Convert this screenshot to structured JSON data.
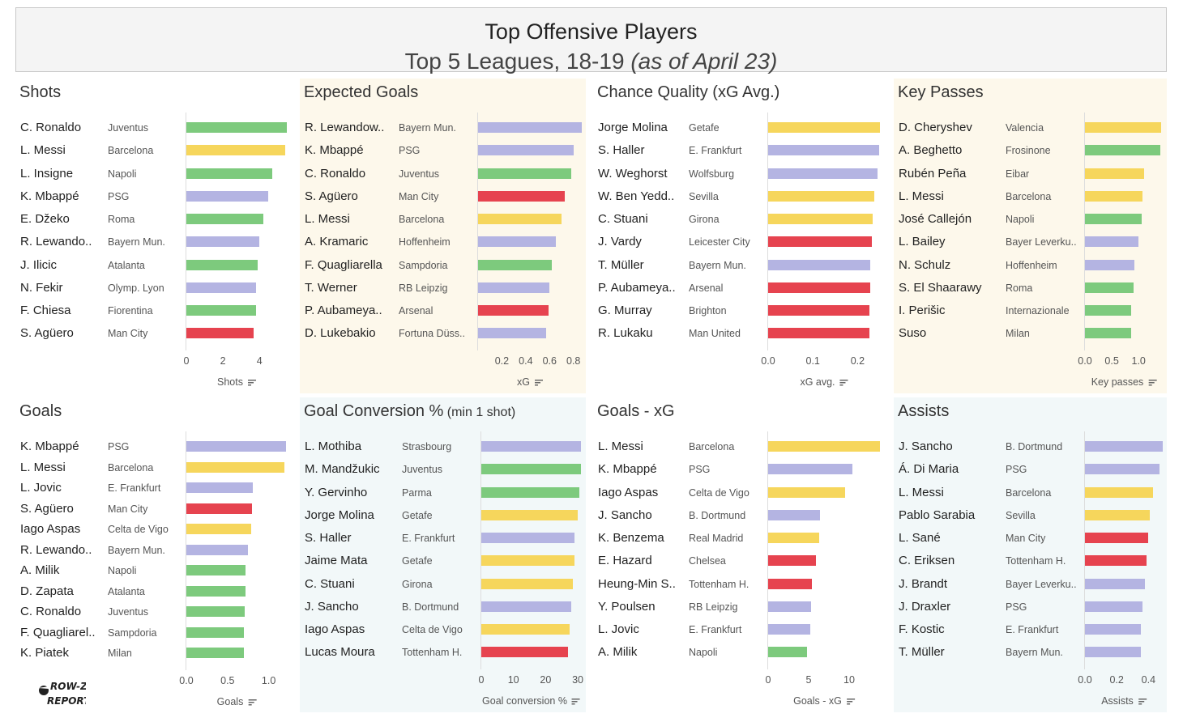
{
  "header": {
    "title": "Top Offensive Players",
    "subtitle_main": "Top 5 Leagues, 18-19 ",
    "subtitle_italic": "(as of April 23)"
  },
  "logo": {
    "text_line1": "ROW-Z",
    "text_line2": "REPORT"
  },
  "colors": {
    "green": "#7dca7d",
    "yellow": "#f6d65c",
    "purple": "#b4b4e2",
    "red": "#e6434f"
  },
  "chart_data": [
    {
      "type": "bar",
      "title": "Shots",
      "title_suffix": "",
      "xlabel": "Shots",
      "xlim": [
        0,
        5.5
      ],
      "ticks": [
        {
          "v": 0,
          "label": "0"
        },
        {
          "v": 2,
          "label": "2"
        },
        {
          "v": 4,
          "label": "4"
        }
      ],
      "players": [
        {
          "name": "C. Ronaldo",
          "team": "Juventus",
          "value": 5.5,
          "color": "green"
        },
        {
          "name": "L. Messi",
          "team": "Barcelona",
          "value": 5.4,
          "color": "yellow"
        },
        {
          "name": "L. Insigne",
          "team": "Napoli",
          "value": 4.7,
          "color": "green"
        },
        {
          "name": "K. Mbappé",
          "team": "PSG",
          "value": 4.5,
          "color": "purple"
        },
        {
          "name": "E. Džeko",
          "team": "Roma",
          "value": 4.2,
          "color": "green"
        },
        {
          "name": "R. Lewando..",
          "team": "Bayern Mun.",
          "value": 4.0,
          "color": "purple"
        },
        {
          "name": "J. Ilicic",
          "team": "Atalanta",
          "value": 3.9,
          "color": "green"
        },
        {
          "name": "N. Fekir",
          "team": "Olymp. Lyon",
          "value": 3.8,
          "color": "purple"
        },
        {
          "name": "F. Chiesa",
          "team": "Fiorentina",
          "value": 3.8,
          "color": "green"
        },
        {
          "name": "S. Agüero",
          "team": "Man City",
          "value": 3.7,
          "color": "red"
        }
      ]
    },
    {
      "type": "bar",
      "title": "Expected Goals",
      "title_suffix": "",
      "xlabel": "xG",
      "xlim": [
        0,
        0.87
      ],
      "ticks": [
        {
          "v": 0.2,
          "label": "0.2"
        },
        {
          "v": 0.4,
          "label": "0.4"
        },
        {
          "v": 0.6,
          "label": "0.6"
        },
        {
          "v": 0.8,
          "label": "0.8"
        }
      ],
      "players": [
        {
          "name": "R. Lewandow..",
          "team": "Bayern Mun.",
          "value": 0.87,
          "color": "purple"
        },
        {
          "name": "K. Mbappé",
          "team": "PSG",
          "value": 0.8,
          "color": "purple"
        },
        {
          "name": "C. Ronaldo",
          "team": "Juventus",
          "value": 0.78,
          "color": "green"
        },
        {
          "name": "S. Agüero",
          "team": "Man City",
          "value": 0.73,
          "color": "red"
        },
        {
          "name": "L. Messi",
          "team": "Barcelona",
          "value": 0.7,
          "color": "yellow"
        },
        {
          "name": "A. Kramaric",
          "team": "Hoffenheim",
          "value": 0.65,
          "color": "purple"
        },
        {
          "name": "F. Quagliarella",
          "team": "Sampdoria",
          "value": 0.62,
          "color": "green"
        },
        {
          "name": "T. Werner",
          "team": "RB Leipzig",
          "value": 0.6,
          "color": "purple"
        },
        {
          "name": "P. Aubameya..",
          "team": "Arsenal",
          "value": 0.59,
          "color": "red"
        },
        {
          "name": "D. Lukebakio",
          "team": "Fortuna Düss..",
          "value": 0.57,
          "color": "purple"
        }
      ]
    },
    {
      "type": "bar",
      "title": "Chance Quality (xG Avg.)",
      "title_suffix": "",
      "xlabel": "xG avg.",
      "xlim": [
        0,
        0.25
      ],
      "ticks": [
        {
          "v": 0,
          "label": "0.0"
        },
        {
          "v": 0.1,
          "label": "0.1"
        },
        {
          "v": 0.2,
          "label": "0.2"
        }
      ],
      "players": [
        {
          "name": "Jorge Molina",
          "team": "Getafe",
          "value": 0.25,
          "color": "yellow"
        },
        {
          "name": "S. Haller",
          "team": "E. Frankfurt",
          "value": 0.248,
          "color": "purple"
        },
        {
          "name": "W. Weghorst",
          "team": "Wolfsburg",
          "value": 0.245,
          "color": "purple"
        },
        {
          "name": "W. Ben Yedd..",
          "team": "Sevilla",
          "value": 0.237,
          "color": "yellow"
        },
        {
          "name": "C. Stuani",
          "team": "Girona",
          "value": 0.234,
          "color": "yellow"
        },
        {
          "name": "J. Vardy",
          "team": "Leicester City",
          "value": 0.231,
          "color": "red"
        },
        {
          "name": "T. Müller",
          "team": "Bayern Mun.",
          "value": 0.229,
          "color": "purple"
        },
        {
          "name": "P. Aubameya..",
          "team": "Arsenal",
          "value": 0.228,
          "color": "red"
        },
        {
          "name": "G. Murray",
          "team": "Brighton",
          "value": 0.227,
          "color": "red"
        },
        {
          "name": "R. Lukaku",
          "team": "Man United",
          "value": 0.226,
          "color": "red"
        }
      ]
    },
    {
      "type": "bar",
      "title": "Key Passes",
      "title_suffix": "",
      "xlabel": "Key passes",
      "xlim": [
        0,
        1.45
      ],
      "ticks": [
        {
          "v": 0,
          "label": "0.0"
        },
        {
          "v": 0.5,
          "label": "0.5"
        },
        {
          "v": 1.0,
          "label": "1.0"
        }
      ],
      "players": [
        {
          "name": "D. Cheryshev",
          "team": "Valencia",
          "value": 1.42,
          "color": "yellow"
        },
        {
          "name": "A. Beghetto",
          "team": "Frosinone",
          "value": 1.4,
          "color": "green"
        },
        {
          "name": "Rubén Peña",
          "team": "Eibar",
          "value": 1.1,
          "color": "yellow"
        },
        {
          "name": "L. Messi",
          "team": "Barcelona",
          "value": 1.07,
          "color": "yellow"
        },
        {
          "name": "José Callejón",
          "team": "Napoli",
          "value": 1.05,
          "color": "green"
        },
        {
          "name": "L. Bailey",
          "team": "Bayer Leverku..",
          "value": 1.0,
          "color": "purple"
        },
        {
          "name": "N. Schulz",
          "team": "Hoffenheim",
          "value": 0.92,
          "color": "purple"
        },
        {
          "name": "S. El Shaarawy",
          "team": "Roma",
          "value": 0.9,
          "color": "green"
        },
        {
          "name": "I. Perišic",
          "team": "Internazionale",
          "value": 0.86,
          "color": "green"
        },
        {
          "name": "Suso",
          "team": "Milan",
          "value": 0.86,
          "color": "green"
        }
      ]
    },
    {
      "type": "bar",
      "title": "Goals",
      "title_suffix": "",
      "xlabel": "Goals",
      "xlim": [
        0,
        1.22
      ],
      "ticks": [
        {
          "v": 0,
          "label": "0.0"
        },
        {
          "v": 0.5,
          "label": "0.5"
        },
        {
          "v": 1.0,
          "label": "1.0"
        }
      ],
      "players": [
        {
          "name": "K. Mbappé",
          "team": "PSG",
          "value": 1.21,
          "color": "purple"
        },
        {
          "name": "L. Messi",
          "team": "Barcelona",
          "value": 1.19,
          "color": "yellow"
        },
        {
          "name": "L. Jovic",
          "team": "E. Frankfurt",
          "value": 0.81,
          "color": "purple"
        },
        {
          "name": "S. Agüero",
          "team": "Man City",
          "value": 0.8,
          "color": "red"
        },
        {
          "name": "Iago Aspas",
          "team": "Celta de Vigo",
          "value": 0.79,
          "color": "yellow"
        },
        {
          "name": "R. Lewando..",
          "team": "Bayern Mun.",
          "value": 0.75,
          "color": "purple"
        },
        {
          "name": "A. Milik",
          "team": "Napoli",
          "value": 0.72,
          "color": "green"
        },
        {
          "name": "D. Zapata",
          "team": "Atalanta",
          "value": 0.72,
          "color": "green"
        },
        {
          "name": "C. Ronaldo",
          "team": "Juventus",
          "value": 0.71,
          "color": "green"
        },
        {
          "name": "F. Quagliarel..",
          "team": "Sampdoria",
          "value": 0.7,
          "color": "green"
        },
        {
          "name": "K. Piatek",
          "team": "Milan",
          "value": 0.7,
          "color": "green"
        }
      ]
    },
    {
      "type": "bar",
      "title": "Goal Conversion %",
      "title_suffix": " (min 1 shot)",
      "xlabel": "Goal conversion %",
      "xlim": [
        0,
        31
      ],
      "ticks": [
        {
          "v": 0,
          "label": "0"
        },
        {
          "v": 10,
          "label": "10"
        },
        {
          "v": 20,
          "label": "20"
        },
        {
          "v": 30,
          "label": "30"
        }
      ],
      "players": [
        {
          "name": "L. Mothiba",
          "team": "Strasbourg",
          "value": 31,
          "color": "purple"
        },
        {
          "name": "M. Mandžukic",
          "team": "Juventus",
          "value": 31,
          "color": "green"
        },
        {
          "name": "Y. Gervinho",
          "team": "Parma",
          "value": 30.5,
          "color": "green"
        },
        {
          "name": "Jorge Molina",
          "team": "Getafe",
          "value": 30,
          "color": "yellow"
        },
        {
          "name": "S. Haller",
          "team": "E. Frankfurt",
          "value": 29,
          "color": "purple"
        },
        {
          "name": "Jaime Mata",
          "team": "Getafe",
          "value": 29,
          "color": "yellow"
        },
        {
          "name": "C. Stuani",
          "team": "Girona",
          "value": 28.5,
          "color": "yellow"
        },
        {
          "name": "J. Sancho",
          "team": "B. Dortmund",
          "value": 28,
          "color": "purple"
        },
        {
          "name": "Iago Aspas",
          "team": "Celta de Vigo",
          "value": 27.5,
          "color": "yellow"
        },
        {
          "name": "Lucas Moura",
          "team": "Tottenham H.",
          "value": 27,
          "color": "red"
        }
      ]
    },
    {
      "type": "bar",
      "title": "Goals - xG",
      "title_suffix": "",
      "xlabel": "Goals - xG",
      "xlim": [
        0,
        13.8
      ],
      "ticks": [
        {
          "v": 0,
          "label": "0"
        },
        {
          "v": 5,
          "label": "5"
        },
        {
          "v": 10,
          "label": "10"
        }
      ],
      "players": [
        {
          "name": "L. Messi",
          "team": "Barcelona",
          "value": 13.8,
          "color": "yellow"
        },
        {
          "name": "K. Mbappé",
          "team": "PSG",
          "value": 10.4,
          "color": "purple"
        },
        {
          "name": "Iago Aspas",
          "team": "Celta de Vigo",
          "value": 9.5,
          "color": "yellow"
        },
        {
          "name": "J. Sancho",
          "team": "B. Dortmund",
          "value": 6.4,
          "color": "purple"
        },
        {
          "name": "K. Benzema",
          "team": "Real Madrid",
          "value": 6.3,
          "color": "yellow"
        },
        {
          "name": "E. Hazard",
          "team": "Chelsea",
          "value": 5.9,
          "color": "red"
        },
        {
          "name": "Heung-Min S..",
          "team": "Tottenham H.",
          "value": 5.4,
          "color": "red"
        },
        {
          "name": "Y. Poulsen",
          "team": "RB Leipzig",
          "value": 5.3,
          "color": "purple"
        },
        {
          "name": "L. Jovic",
          "team": "E. Frankfurt",
          "value": 5.2,
          "color": "purple"
        },
        {
          "name": "A. Milik",
          "team": "Napoli",
          "value": 4.8,
          "color": "green"
        }
      ]
    },
    {
      "type": "bar",
      "title": "Assists",
      "title_suffix": "",
      "xlabel": "Assists",
      "xlim": [
        0,
        0.49
      ],
      "ticks": [
        {
          "v": 0,
          "label": "0.0"
        },
        {
          "v": 0.2,
          "label": "0.2"
        },
        {
          "v": 0.4,
          "label": "0.4"
        }
      ],
      "players": [
        {
          "name": "J. Sancho",
          "team": "B. Dortmund",
          "value": 0.49,
          "color": "purple"
        },
        {
          "name": "Á. Di Maria",
          "team": "PSG",
          "value": 0.47,
          "color": "purple"
        },
        {
          "name": "L. Messi",
          "team": "Barcelona",
          "value": 0.43,
          "color": "yellow"
        },
        {
          "name": "Pablo Sarabia",
          "team": "Sevilla",
          "value": 0.41,
          "color": "yellow"
        },
        {
          "name": "L. Sané",
          "team": "Man City",
          "value": 0.4,
          "color": "red"
        },
        {
          "name": "C. Eriksen",
          "team": "Tottenham H.",
          "value": 0.39,
          "color": "red"
        },
        {
          "name": "J. Brandt",
          "team": "Bayer Leverku..",
          "value": 0.38,
          "color": "purple"
        },
        {
          "name": "J. Draxler",
          "team": "PSG",
          "value": 0.36,
          "color": "purple"
        },
        {
          "name": "F. Kostic",
          "team": "E. Frankfurt",
          "value": 0.35,
          "color": "purple"
        },
        {
          "name": "T. Müller",
          "team": "Bayern Mun.",
          "value": 0.35,
          "color": "purple"
        }
      ]
    }
  ]
}
